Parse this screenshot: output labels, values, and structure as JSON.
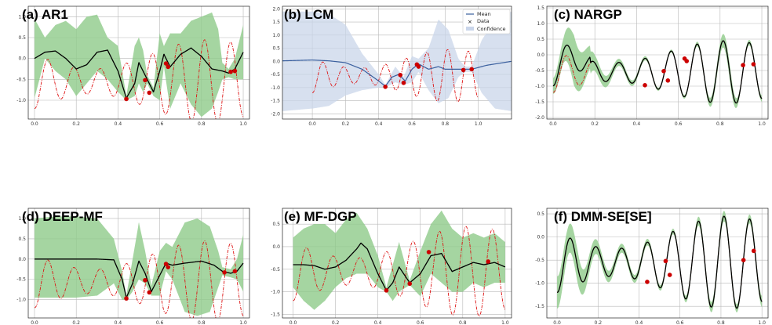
{
  "colors": {
    "confidence_green": "#8fcb8a",
    "confidence_blue": "#c9d5ea",
    "mean_black": "#000000",
    "mean_blue": "#3a5f9e",
    "truth_red": "#dd1111",
    "data_red": "#cc0000",
    "grid": "#b8b8b8"
  },
  "legend": {
    "mean": "Mean",
    "data": "Data",
    "confidence": "Confidence"
  },
  "chart_data": [
    {
      "id": "a",
      "type": "line",
      "title": "(a) AR1",
      "xlim": [
        -0.03,
        1.03
      ],
      "ylim": [
        -1.45,
        1.25
      ],
      "xticks": [
        0.0,
        0.2,
        0.4,
        0.6,
        0.8,
        1.0
      ],
      "xtick_labels": [
        "0.0",
        "0.2",
        "0.4",
        "0.6",
        "0.8",
        "1.0"
      ],
      "yticks": [
        1.0,
        0.5,
        0.0,
        -0.5,
        -1.0
      ],
      "ytick_labels": [
        "1.0",
        "0.5",
        "0.0",
        "-0.5",
        "-1.0"
      ],
      "fill": "green",
      "line_color": "black",
      "mean": [
        [
          0,
          0
        ],
        [
          0.05,
          0.15
        ],
        [
          0.1,
          0.18
        ],
        [
          0.15,
          0.0
        ],
        [
          0.2,
          -0.25
        ],
        [
          0.25,
          -0.15
        ],
        [
          0.3,
          0.15
        ],
        [
          0.35,
          0.2
        ],
        [
          0.4,
          -0.3
        ],
        [
          0.44,
          -0.95
        ],
        [
          0.48,
          -0.6
        ],
        [
          0.5,
          -0.1
        ],
        [
          0.52,
          -0.3
        ],
        [
          0.54,
          -0.5
        ],
        [
          0.57,
          -0.8
        ],
        [
          0.6,
          -0.3
        ],
        [
          0.62,
          0.1
        ],
        [
          0.65,
          -0.2
        ],
        [
          0.7,
          0.1
        ],
        [
          0.75,
          0.25
        ],
        [
          0.8,
          0.05
        ],
        [
          0.85,
          -0.25
        ],
        [
          0.9,
          -0.3
        ],
        [
          0.93,
          -0.35
        ],
        [
          0.96,
          -0.25
        ],
        [
          1.0,
          0.15
        ]
      ],
      "band": [
        [
          0,
          -0.95,
          0.95
        ],
        [
          0.05,
          0.0,
          0.5
        ],
        [
          0.1,
          -0.3,
          0.8
        ],
        [
          0.15,
          -0.5,
          0.9
        ],
        [
          0.2,
          -0.9,
          0.7
        ],
        [
          0.25,
          -0.6,
          1.0
        ],
        [
          0.3,
          -0.3,
          1.05
        ],
        [
          0.35,
          -0.5,
          0.5
        ],
        [
          0.4,
          -0.8,
          0.3
        ],
        [
          0.44,
          -1.0,
          -0.9
        ],
        [
          0.48,
          -0.9,
          0.3
        ],
        [
          0.5,
          -0.6,
          0.5
        ],
        [
          0.52,
          -0.8,
          0.2
        ],
        [
          0.54,
          -0.6,
          -0.4
        ],
        [
          0.57,
          -0.9,
          -0.7
        ],
        [
          0.6,
          -1.0,
          0.6
        ],
        [
          0.62,
          -0.2,
          0.3
        ],
        [
          0.65,
          -1.2,
          0.6
        ],
        [
          0.7,
          -0.6,
          0.6
        ],
        [
          0.75,
          -1.1,
          0.9
        ],
        [
          0.8,
          -1.4,
          1.0
        ],
        [
          0.85,
          -1.2,
          1.1
        ],
        [
          0.88,
          -0.8,
          0.7
        ],
        [
          0.9,
          -0.5,
          -0.1
        ],
        [
          0.93,
          -0.45,
          -0.25
        ],
        [
          0.96,
          -0.5,
          0.0
        ],
        [
          1.0,
          -0.5,
          0.8
        ]
      ],
      "data_points": [
        [
          0.44,
          -0.97
        ],
        [
          0.53,
          -0.52
        ],
        [
          0.55,
          -0.82
        ],
        [
          0.63,
          -0.12
        ],
        [
          0.64,
          -0.2
        ],
        [
          0.94,
          -0.32
        ],
        [
          0.96,
          -0.3
        ]
      ]
    },
    {
      "id": "b",
      "type": "line",
      "title": "(b) LCM",
      "xlim": [
        -0.18,
        1.2
      ],
      "ylim": [
        -2.2,
        2.1
      ],
      "xticks": [
        0.0,
        0.2,
        0.4,
        0.6,
        0.8,
        1.0
      ],
      "xtick_labels": [
        "0.0",
        "0.2",
        "0.4",
        "0.6",
        "0.8",
        "1.0"
      ],
      "yticks": [
        2.0,
        1.5,
        1.0,
        0.5,
        0.0,
        -0.5,
        -1.0,
        -1.5,
        -2.0
      ],
      "ytick_labels": [
        "2.0",
        "1.5",
        "1.0",
        "0.5",
        "0.0",
        "-0.5",
        "-1.0",
        "-1.5",
        "-2.0"
      ],
      "fill": "blue",
      "line_color": "blue",
      "legend": true,
      "mean": [
        [
          -0.18,
          0.02
        ],
        [
          0.0,
          0.05
        ],
        [
          0.1,
          0.02
        ],
        [
          0.2,
          -0.05
        ],
        [
          0.3,
          -0.3
        ],
        [
          0.4,
          -0.75
        ],
        [
          0.44,
          -0.95
        ],
        [
          0.48,
          -0.6
        ],
        [
          0.52,
          -0.5
        ],
        [
          0.56,
          -0.75
        ],
        [
          0.6,
          -0.3
        ],
        [
          0.64,
          -0.1
        ],
        [
          0.7,
          -0.3
        ],
        [
          0.76,
          -0.2
        ],
        [
          0.8,
          -0.3
        ],
        [
          0.86,
          -0.3
        ],
        [
          0.92,
          -0.3
        ],
        [
          0.96,
          -0.3
        ],
        [
          1.05,
          -0.15
        ],
        [
          1.2,
          0.0
        ]
      ],
      "band": [
        [
          -0.18,
          -1.9,
          1.9
        ],
        [
          0.0,
          -1.8,
          1.9
        ],
        [
          0.1,
          -1.7,
          1.8
        ],
        [
          0.2,
          -1.3,
          1.4
        ],
        [
          0.3,
          -1.1,
          0.3
        ],
        [
          0.4,
          -1.0,
          -0.5
        ],
        [
          0.44,
          -1.0,
          -0.9
        ],
        [
          0.5,
          -0.8,
          -0.2
        ],
        [
          0.55,
          -0.9,
          -0.6
        ],
        [
          0.6,
          -0.8,
          0.2
        ],
        [
          0.64,
          -0.4,
          0.1
        ],
        [
          0.7,
          -1.1,
          0.5
        ],
        [
          0.76,
          -1.6,
          1.6
        ],
        [
          0.82,
          -1.4,
          1.2
        ],
        [
          0.88,
          -0.6,
          0.1
        ],
        [
          0.92,
          -0.4,
          -0.2
        ],
        [
          0.96,
          -0.4,
          -0.2
        ],
        [
          1.02,
          -1.2,
          0.8
        ],
        [
          1.1,
          -1.8,
          1.6
        ],
        [
          1.2,
          -1.9,
          1.9
        ]
      ],
      "data_points": [
        [
          0.44,
          -0.97
        ],
        [
          0.53,
          -0.52
        ],
        [
          0.55,
          -0.82
        ],
        [
          0.63,
          -0.12
        ],
        [
          0.64,
          -0.2
        ],
        [
          0.91,
          -0.33
        ],
        [
          0.96,
          -0.3
        ]
      ]
    },
    {
      "id": "c",
      "type": "line",
      "title": "(c) NARGP",
      "xlim": [
        -0.03,
        1.03
      ],
      "ylim": [
        -2.05,
        1.55
      ],
      "xticks": [
        0.0,
        0.2,
        0.4,
        0.6,
        0.8,
        1.0
      ],
      "xtick_labels": [
        "0.0",
        "0.2",
        "0.4",
        "0.6",
        "0.8",
        "1.0"
      ],
      "yticks": [
        1.5,
        1.0,
        0.5,
        0.0,
        -0.5,
        -1.0,
        -1.5,
        -2.0
      ],
      "ytick_labels": [
        "1.5",
        "1.0",
        "0.5",
        "0.0",
        "-0.5",
        "-1.0",
        "-1.5",
        "-2.0"
      ],
      "fill": "green",
      "line_color": "black",
      "band_width": [
        [
          0,
          0.25
        ],
        [
          0.05,
          0.4
        ],
        [
          0.1,
          0.8
        ],
        [
          0.15,
          0.5
        ],
        [
          0.2,
          0.25
        ],
        [
          0.3,
          0.12
        ],
        [
          0.4,
          0.08
        ],
        [
          0.5,
          0.05
        ],
        [
          0.6,
          0.05
        ],
        [
          0.7,
          0.08
        ],
        [
          0.8,
          0.2
        ],
        [
          0.85,
          0.25
        ],
        [
          0.9,
          0.08
        ],
        [
          1.0,
          0.1
        ]
      ],
      "data_points": [
        [
          0.44,
          -0.97
        ],
        [
          0.53,
          -0.52
        ],
        [
          0.55,
          -0.82
        ],
        [
          0.63,
          -0.12
        ],
        [
          0.64,
          -0.2
        ],
        [
          0.91,
          -0.33
        ],
        [
          0.96,
          -0.3
        ]
      ]
    },
    {
      "id": "d",
      "type": "line",
      "title": "(d) DEEP-MF",
      "xlim": [
        -0.03,
        1.03
      ],
      "ylim": [
        -1.45,
        1.25
      ],
      "xticks": [
        0.0,
        0.2,
        0.4,
        0.6,
        0.8,
        1.0
      ],
      "xtick_labels": [
        "0.0",
        "0.2",
        "0.4",
        "0.6",
        "0.8",
        "1.0"
      ],
      "yticks": [
        1.0,
        0.5,
        0.0,
        -0.5,
        -1.0
      ],
      "ytick_labels": [
        "1.0",
        "0.5",
        "0.0",
        "-0.5",
        "-1.0"
      ],
      "fill": "green",
      "line_color": "black",
      "mean": [
        [
          0,
          0
        ],
        [
          0.3,
          0
        ],
        [
          0.38,
          -0.02
        ],
        [
          0.42,
          -0.5
        ],
        [
          0.44,
          -0.95
        ],
        [
          0.47,
          -0.6
        ],
        [
          0.5,
          -0.05
        ],
        [
          0.53,
          -0.35
        ],
        [
          0.56,
          -0.8
        ],
        [
          0.6,
          -0.4
        ],
        [
          0.63,
          -0.1
        ],
        [
          0.66,
          -0.15
        ],
        [
          0.72,
          -0.1
        ],
        [
          0.8,
          -0.05
        ],
        [
          0.86,
          -0.15
        ],
        [
          0.9,
          -0.3
        ],
        [
          0.94,
          -0.35
        ],
        [
          0.97,
          -0.3
        ],
        [
          1.0,
          -0.1
        ]
      ],
      "band": [
        [
          0,
          -0.95,
          1.0
        ],
        [
          0.1,
          -0.95,
          1.05
        ],
        [
          0.2,
          -0.95,
          1.05
        ],
        [
          0.3,
          -0.9,
          1.0
        ],
        [
          0.38,
          -0.6,
          0.5
        ],
        [
          0.42,
          -1.0,
          -0.3
        ],
        [
          0.44,
          -1.0,
          -0.9
        ],
        [
          0.47,
          -0.8,
          0.0
        ],
        [
          0.5,
          -0.5,
          0.9
        ],
        [
          0.53,
          -0.6,
          0.2
        ],
        [
          0.56,
          -0.9,
          -0.65
        ],
        [
          0.6,
          -0.9,
          0.2
        ],
        [
          0.63,
          -0.3,
          0.4
        ],
        [
          0.66,
          -0.5,
          0.3
        ],
        [
          0.72,
          -1.3,
          0.9
        ],
        [
          0.78,
          -1.4,
          1.0
        ],
        [
          0.84,
          -1.3,
          0.8
        ],
        [
          0.88,
          -0.7,
          0.2
        ],
        [
          0.9,
          -0.4,
          -0.2
        ],
        [
          0.94,
          -0.45,
          -0.25
        ],
        [
          0.97,
          -0.5,
          0.0
        ],
        [
          1.0,
          -0.8,
          0.6
        ]
      ],
      "data_points": [
        [
          0.44,
          -0.97
        ],
        [
          0.53,
          -0.52
        ],
        [
          0.55,
          -0.82
        ],
        [
          0.63,
          -0.12
        ],
        [
          0.64,
          -0.2
        ],
        [
          0.91,
          -0.33
        ],
        [
          0.96,
          -0.3
        ]
      ]
    },
    {
      "id": "e",
      "type": "line",
      "title": "(e) MF-DGP",
      "xlim": [
        -0.05,
        1.03
      ],
      "ylim": [
        -1.58,
        0.85
      ],
      "xticks": [
        0.0,
        0.2,
        0.4,
        0.6,
        0.8,
        1.0
      ],
      "xtick_labels": [
        "0.0",
        "0.2",
        "0.4",
        "0.6",
        "0.8",
        "1.0"
      ],
      "yticks": [
        0.5,
        0.0,
        -0.5,
        -1.0,
        -1.5
      ],
      "ytick_labels": [
        "0.5",
        "0.0",
        "-0.5",
        "-1.0",
        "-1.5"
      ],
      "fill": "green",
      "line_color": "black",
      "mean": [
        [
          0,
          -0.4
        ],
        [
          0.05,
          -0.4
        ],
        [
          0.1,
          -0.42
        ],
        [
          0.15,
          -0.5
        ],
        [
          0.2,
          -0.45
        ],
        [
          0.25,
          -0.3
        ],
        [
          0.3,
          -0.05
        ],
        [
          0.32,
          0.08
        ],
        [
          0.35,
          -0.05
        ],
        [
          0.4,
          -0.6
        ],
        [
          0.44,
          -0.97
        ],
        [
          0.47,
          -0.8
        ],
        [
          0.5,
          -0.45
        ],
        [
          0.55,
          -0.8
        ],
        [
          0.6,
          -0.6
        ],
        [
          0.65,
          -0.2
        ],
        [
          0.7,
          -0.15
        ],
        [
          0.75,
          -0.55
        ],
        [
          0.8,
          -0.45
        ],
        [
          0.85,
          -0.35
        ],
        [
          0.9,
          -0.4
        ],
        [
          0.95,
          -0.35
        ],
        [
          1.0,
          -0.45
        ]
      ],
      "band": [
        [
          0,
          -0.9,
          0.2
        ],
        [
          0.05,
          -1.2,
          0.4
        ],
        [
          0.1,
          -1.4,
          0.5
        ],
        [
          0.15,
          -1.2,
          0.5
        ],
        [
          0.2,
          -0.9,
          0.3
        ],
        [
          0.25,
          -0.7,
          0.6
        ],
        [
          0.3,
          -0.6,
          0.75
        ],
        [
          0.35,
          -0.6,
          0.4
        ],
        [
          0.4,
          -0.9,
          -0.2
        ],
        [
          0.44,
          -1.0,
          -0.9
        ],
        [
          0.47,
          -1.2,
          -0.4
        ],
        [
          0.5,
          -1.0,
          0.1
        ],
        [
          0.55,
          -0.85,
          -0.75
        ],
        [
          0.6,
          -1.1,
          -0.1
        ],
        [
          0.65,
          -0.6,
          0.5
        ],
        [
          0.7,
          -0.8,
          0.8
        ],
        [
          0.75,
          -1.0,
          0.4
        ],
        [
          0.8,
          -1.0,
          0.2
        ],
        [
          0.85,
          -0.8,
          0.3
        ],
        [
          0.9,
          -0.9,
          0.2
        ],
        [
          0.95,
          -0.8,
          0.3
        ],
        [
          1.0,
          -0.8,
          0.1
        ]
      ],
      "data_points": [
        [
          0.44,
          -0.97
        ],
        [
          0.55,
          -0.82
        ],
        [
          0.64,
          -0.12
        ],
        [
          0.92,
          -0.33
        ]
      ]
    },
    {
      "id": "f",
      "type": "line",
      "title": "(f) DMM-SE[SE]",
      "xlim": [
        -0.05,
        1.03
      ],
      "ylim": [
        -1.75,
        0.62
      ],
      "xticks": [
        0.0,
        0.2,
        0.4,
        0.6,
        0.8,
        1.0
      ],
      "xtick_labels": [
        "0.0",
        "0.2",
        "0.4",
        "0.6",
        "0.8",
        "1.0"
      ],
      "yticks": [
        0.5,
        0.0,
        -0.5,
        -1.0,
        -1.5
      ],
      "ytick_labels": [
        "0.5",
        "0.0",
        "-0.5",
        "-1.0",
        "-1.5"
      ],
      "fill": "green",
      "line_color": "black",
      "band_width": [
        [
          0,
          0.35
        ],
        [
          0.05,
          0.3
        ],
        [
          0.1,
          0.35
        ],
        [
          0.15,
          0.2
        ],
        [
          0.2,
          0.15
        ],
        [
          0.3,
          0.1
        ],
        [
          0.4,
          0.08
        ],
        [
          0.5,
          0.06
        ],
        [
          0.6,
          0.06
        ],
        [
          0.7,
          0.1
        ],
        [
          0.8,
          0.12
        ],
        [
          0.9,
          0.08
        ],
        [
          1.0,
          0.12
        ]
      ],
      "data_points": [
        [
          0.44,
          -0.97
        ],
        [
          0.53,
          -0.52
        ],
        [
          0.55,
          -0.82
        ],
        [
          0.91,
          -0.5
        ],
        [
          0.96,
          -0.3
        ]
      ]
    }
  ]
}
